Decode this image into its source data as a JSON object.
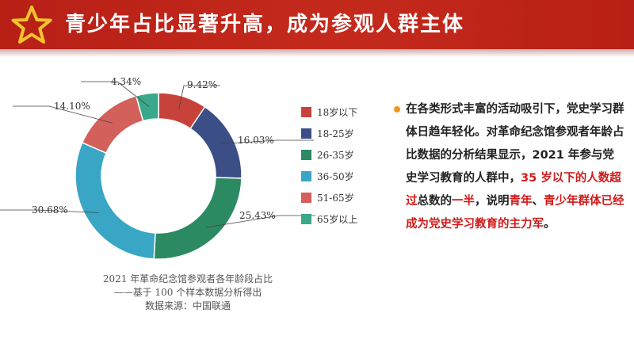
{
  "title": "青少年占比显著升高，成为参观人群主体",
  "colors": {
    "header": "#b81f16",
    "star": "#f2c52c",
    "bullet": "#f0961c",
    "highlight": "#d11a1a"
  },
  "chart_data": {
    "type": "pie",
    "donut": true,
    "categories": [
      "18岁以下",
      "18-25岁",
      "26-35岁",
      "36-50岁",
      "51-65岁",
      "65岁以上"
    ],
    "values": [
      9.42,
      16.03,
      25.43,
      30.68,
      14.1,
      4.34
    ],
    "labels": [
      "9.42%",
      "16.03%",
      "25.43%",
      "30.68%",
      "14.10%",
      "4.34%"
    ],
    "colors": [
      "#c8423c",
      "#3b4e86",
      "#2c8a62",
      "#38a6c4",
      "#d4605c",
      "#3aa88a"
    ],
    "legend_position": "right",
    "caption": [
      "2021 年革命纪念馆参观者各年龄段占比",
      "——基于 100 个样本数据分析得出",
      "数据来源：中国联通"
    ]
  },
  "text": {
    "seg1": "在各类形式丰富的活动吸引下，党史学习群体日趋年轻化。对革命纪念馆参观者年龄占比数据的分析结果显示，2021 年参与党史学习教育的人群中，",
    "seg2": "35 岁以下的人数超过",
    "seg3": "总数的",
    "seg4": "一半",
    "seg5": "，说明",
    "seg6": "青年",
    "seg7": "、",
    "seg8": "青少年群体已经成为党史学习教育的主力军",
    "seg9": "。"
  }
}
